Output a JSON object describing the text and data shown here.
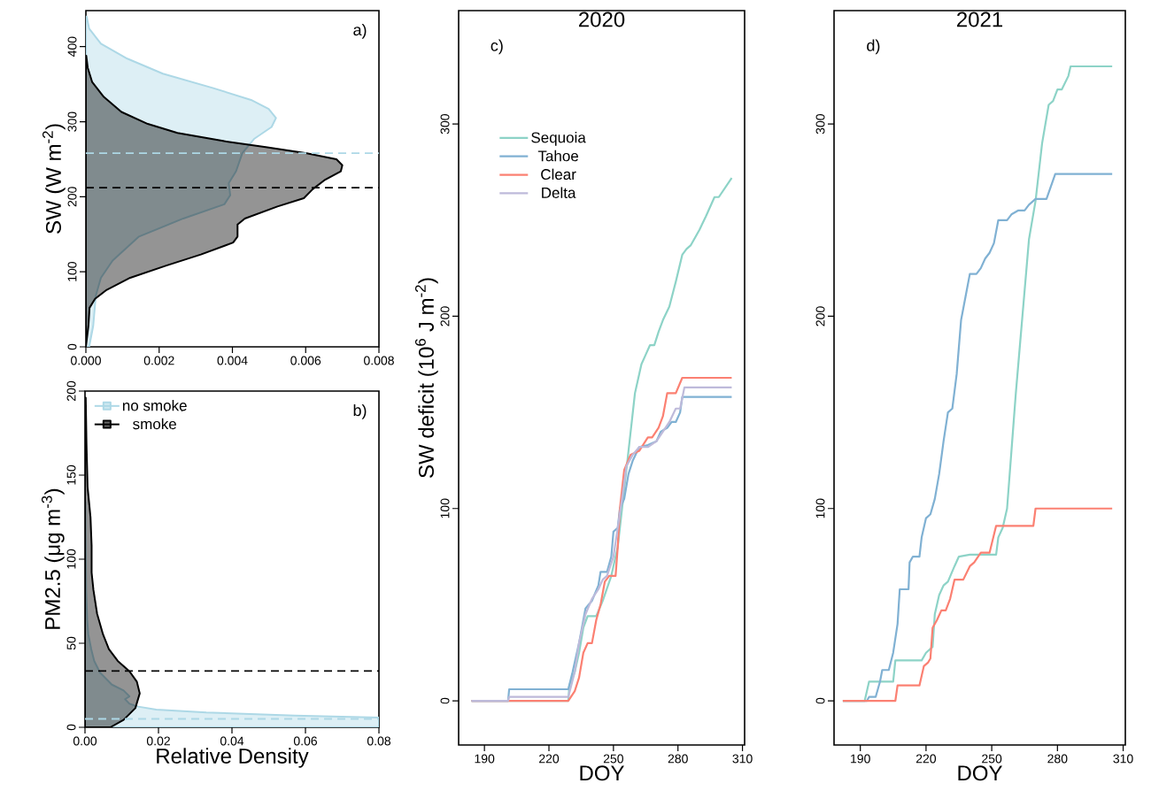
{
  "chart_data": [
    {
      "type": "area",
      "orientation": "horizontal",
      "ylabel": "SW (W m$^{-2}$)",
      "xlim": [
        0,
        0.008
      ],
      "ylim": [
        0,
        448
      ],
      "xticks": [
        {
          "value": 0,
          "label": "0.000"
        },
        0.002,
        0.004,
        0.006,
        0.008
      ],
      "yticks": [
        0,
        100,
        200,
        300,
        400
      ],
      "series": [
        {
          "color": "#add8e6",
          "values": [
            9e-05,
            0.0002,
            0.00027,
            0.00041,
            0.00073,
            0.00145,
            0.00266,
            0.00378,
            0.00394,
            0.0039,
            0.0041,
            0.00427,
            0.00459,
            0.00507,
            0.00519,
            0.00499,
            0.00451,
            0.00346,
            0.0021,
            0.00113,
            0.00041,
            9e-05,
            2e-05
          ],
          "x": [
            0,
            28,
            68,
            92,
            115,
            147,
            171,
            190,
            202,
            218,
            234,
            258,
            277,
            293,
            305,
            317,
            329,
            345,
            364,
            384,
            404,
            424,
            440
          ]
        },
        {
          "color": "#000000",
          "values": [
            0,
            7e-05,
            0.0001,
            0.00025,
            0.00057,
            0.00121,
            0.00218,
            0.00314,
            0.00402,
            0.00414,
            0.00414,
            0.00434,
            0.00523,
            0.00595,
            0.00619,
            0.00651,
            0.00696,
            0.007,
            0.00684,
            0.00603,
            0.00491,
            0.00378,
            0.0025,
            0.00169,
            0.00097,
            0.00049,
            0.00017,
            5e-05,
            1e-05
          ],
          "x": [
            0,
            28,
            52,
            64,
            76,
            92,
            108,
            123,
            139,
            147,
            163,
            171,
            187,
            198,
            210,
            222,
            234,
            242,
            250,
            258,
            266,
            274,
            285,
            297,
            313,
            333,
            353,
            372,
            388
          ]
        }
      ],
      "ref_lines": [
        {
          "axis": "y",
          "value": 258,
          "color": "#add8e6",
          "line_style": "dashed"
        },
        {
          "axis": "y",
          "value": 212,
          "color": "#000000",
          "line_style": "dashed"
        }
      ],
      "annotations": [
        "a)"
      ]
    },
    {
      "type": "area",
      "orientation": "horizontal",
      "xlabel": "Relative Density",
      "ylabel": "PM2.5 (μg m$^{-3}$)",
      "xlim": [
        0,
        0.08
      ],
      "ylim": [
        0,
        200
      ],
      "xticks": [
        {
          "value": 0,
          "label": "0.00"
        },
        0.02,
        0.04,
        0.06,
        0.08
      ],
      "yticks": [
        0,
        50,
        100,
        150,
        200
      ],
      "legend": "top left",
      "series": [
        {
          "name": "no smoke",
          "color": "#add8e6",
          "values": [
            0.08,
            0.08,
            0.0571,
            0.033,
            0.0194,
            0.0145,
            0.0121,
            0.0109,
            0.0121,
            0.0105,
            0.0073,
            0.0041,
            0.0025,
            0.0017,
            0.0009,
            0.0006,
            0.0003,
            0.0002,
            0.0001
          ],
          "x": [
            0,
            5.8,
            7,
            8.8,
            10.5,
            12.3,
            14,
            16.7,
            18.4,
            21.9,
            25.4,
            32.5,
            39.5,
            46.5,
            55.3,
            64,
            81.6,
            108,
            134
          ]
        },
        {
          "name": "smoke",
          "color": "#000000",
          "values": [
            0.0069,
            0.0105,
            0.0137,
            0.0149,
            0.0141,
            0.0121,
            0.0089,
            0.0065,
            0.0049,
            0.0033,
            0.0023,
            0.0018,
            0.0018,
            0.0015,
            0.0007,
            0.0004,
            0.0002
          ],
          "x": [
            0,
            4.4,
            11.4,
            20.2,
            27.2,
            33.3,
            39.5,
            46.5,
            55.3,
            67.5,
            81.6,
            92.1,
            108,
            125,
            143,
            169,
            196
          ]
        }
      ],
      "ref_lines": [
        {
          "axis": "y",
          "value": 33.5,
          "color": "#000000",
          "line_style": "dashed"
        },
        {
          "axis": "y",
          "value": 5,
          "color": "#add8e6",
          "line_style": "dashed"
        }
      ],
      "annotations": [
        "b)"
      ]
    },
    {
      "type": "line",
      "title": "2020",
      "xlabel": "DOY",
      "ylabel": "SW deficit (10$^{6}$ J m$^{-2}$)",
      "xlim": [
        178,
        311
      ],
      "ylim": [
        -23,
        359
      ],
      "xticks": [
        190,
        220,
        250,
        280,
        310
      ],
      "yticks": [
        0,
        100,
        200,
        300
      ],
      "legend": "top left",
      "series": [
        {
          "name": "Sequoia",
          "color": "#8dd3c7",
          "x": [
            184,
            229,
            229.5,
            232,
            234,
            236,
            238,
            242,
            245,
            249,
            252,
            254,
            256,
            258,
            260,
            261,
            263,
            265,
            267,
            269,
            271,
            273,
            276,
            279,
            282,
            284,
            286,
            290,
            293,
            297,
            299,
            305
          ],
          "values": [
            0,
            0,
            8,
            15,
            25,
            38,
            44,
            44,
            52,
            65,
            80,
            100,
            120,
            140,
            160,
            165,
            175,
            180,
            185,
            185,
            192,
            198,
            205,
            218,
            232,
            235,
            237,
            245,
            252,
            262,
            262,
            272
          ]
        },
        {
          "name": "Tahoe",
          "color": "#80b1d3",
          "x": [
            184,
            201,
            201.5,
            229,
            231,
            234,
            237,
            240,
            243,
            244,
            247,
            249,
            250,
            252,
            253,
            255,
            257,
            259,
            262,
            266,
            270,
            272,
            275,
            277,
            279,
            281,
            282,
            305
          ],
          "values": [
            0,
            0,
            6,
            6,
            15,
            30,
            48,
            52,
            60,
            67,
            67,
            75,
            88,
            90,
            100,
            105,
            118,
            125,
            132,
            133,
            135,
            140,
            142,
            145,
            145,
            150,
            158,
            158
          ]
        },
        {
          "name": "Clear",
          "color": "#fb8072",
          "x": [
            184,
            229,
            232,
            234,
            236,
            238,
            240,
            242,
            244,
            246,
            248,
            251,
            252,
            253,
            255,
            258,
            262,
            266,
            268,
            271,
            273,
            275,
            279,
            282,
            305
          ],
          "values": [
            0,
            0,
            5,
            12,
            25,
            30,
            30,
            42,
            50,
            62,
            65,
            65,
            80,
            100,
            120,
            128,
            130,
            137,
            137,
            142,
            148,
            160,
            160,
            168,
            168
          ]
        },
        {
          "name": "Delta",
          "color": "#bebada",
          "x": [
            184,
            201,
            201.5,
            229,
            232,
            234,
            237,
            240,
            243,
            245,
            247,
            250,
            252,
            254,
            256,
            259,
            262,
            266,
            270,
            273,
            276,
            279,
            281,
            283,
            305
          ],
          "values": [
            0,
            0,
            2,
            2,
            15,
            30,
            45,
            53,
            58,
            63,
            65,
            75,
            90,
            105,
            122,
            128,
            132,
            132,
            135,
            140,
            145,
            152,
            152,
            163,
            163
          ]
        }
      ],
      "annotations": [
        "c)"
      ]
    },
    {
      "type": "line",
      "title": "2021",
      "xlabel": "DOY",
      "xlim": [
        178,
        311
      ],
      "ylim": [
        -23,
        359
      ],
      "xticks": [
        190,
        220,
        250,
        280,
        310
      ],
      "yticks": [
        0,
        100,
        200,
        300
      ],
      "series": [
        {
          "color": "#8dd3c7",
          "x": [
            182,
            192,
            194,
            205,
            206,
            218,
            220,
            223,
            224,
            226,
            228,
            230,
            233,
            235,
            240,
            252,
            253,
            255,
            257,
            259,
            261,
            264,
            267,
            270,
            273,
            276,
            278,
            280,
            282,
            285,
            286,
            305
          ],
          "values": [
            0,
            0,
            10,
            10,
            21,
            21,
            25,
            28,
            45,
            55,
            60,
            62,
            70,
            75,
            76,
            76,
            85,
            90,
            100,
            130,
            160,
            200,
            240,
            260,
            290,
            310,
            312,
            318,
            318,
            325,
            330,
            330
          ]
        },
        {
          "color": "#80b1d3",
          "x": [
            182,
            193,
            194,
            197,
            199,
            200,
            203,
            205,
            207,
            208,
            212,
            212.5,
            214,
            217,
            218,
            220,
            222,
            224,
            226,
            228,
            230,
            232,
            234,
            236,
            238,
            240,
            243,
            245,
            247,
            249,
            251,
            253,
            257,
            259,
            262,
            265,
            267,
            270,
            275,
            279,
            305
          ],
          "values": [
            0,
            0,
            2,
            2,
            10,
            16,
            16,
            25,
            40,
            58,
            58,
            72,
            75,
            75,
            85,
            95,
            97,
            105,
            118,
            135,
            150,
            152,
            170,
            198,
            210,
            222,
            222,
            225,
            230,
            233,
            238,
            250,
            250,
            253,
            255,
            255,
            258,
            261,
            261,
            274,
            274
          ]
        },
        {
          "color": "#fb8072",
          "x": [
            182,
            206,
            207,
            217,
            219,
            221,
            222,
            223,
            225,
            227,
            229,
            231,
            233,
            237,
            240,
            242,
            245,
            249,
            252,
            269,
            270,
            305
          ],
          "values": [
            0,
            0,
            8,
            8,
            18,
            20,
            22,
            38,
            42,
            47,
            47,
            53,
            63,
            63,
            70,
            72,
            77,
            77,
            91,
            91,
            100,
            100
          ]
        }
      ],
      "annotations": [
        "d)"
      ]
    }
  ]
}
